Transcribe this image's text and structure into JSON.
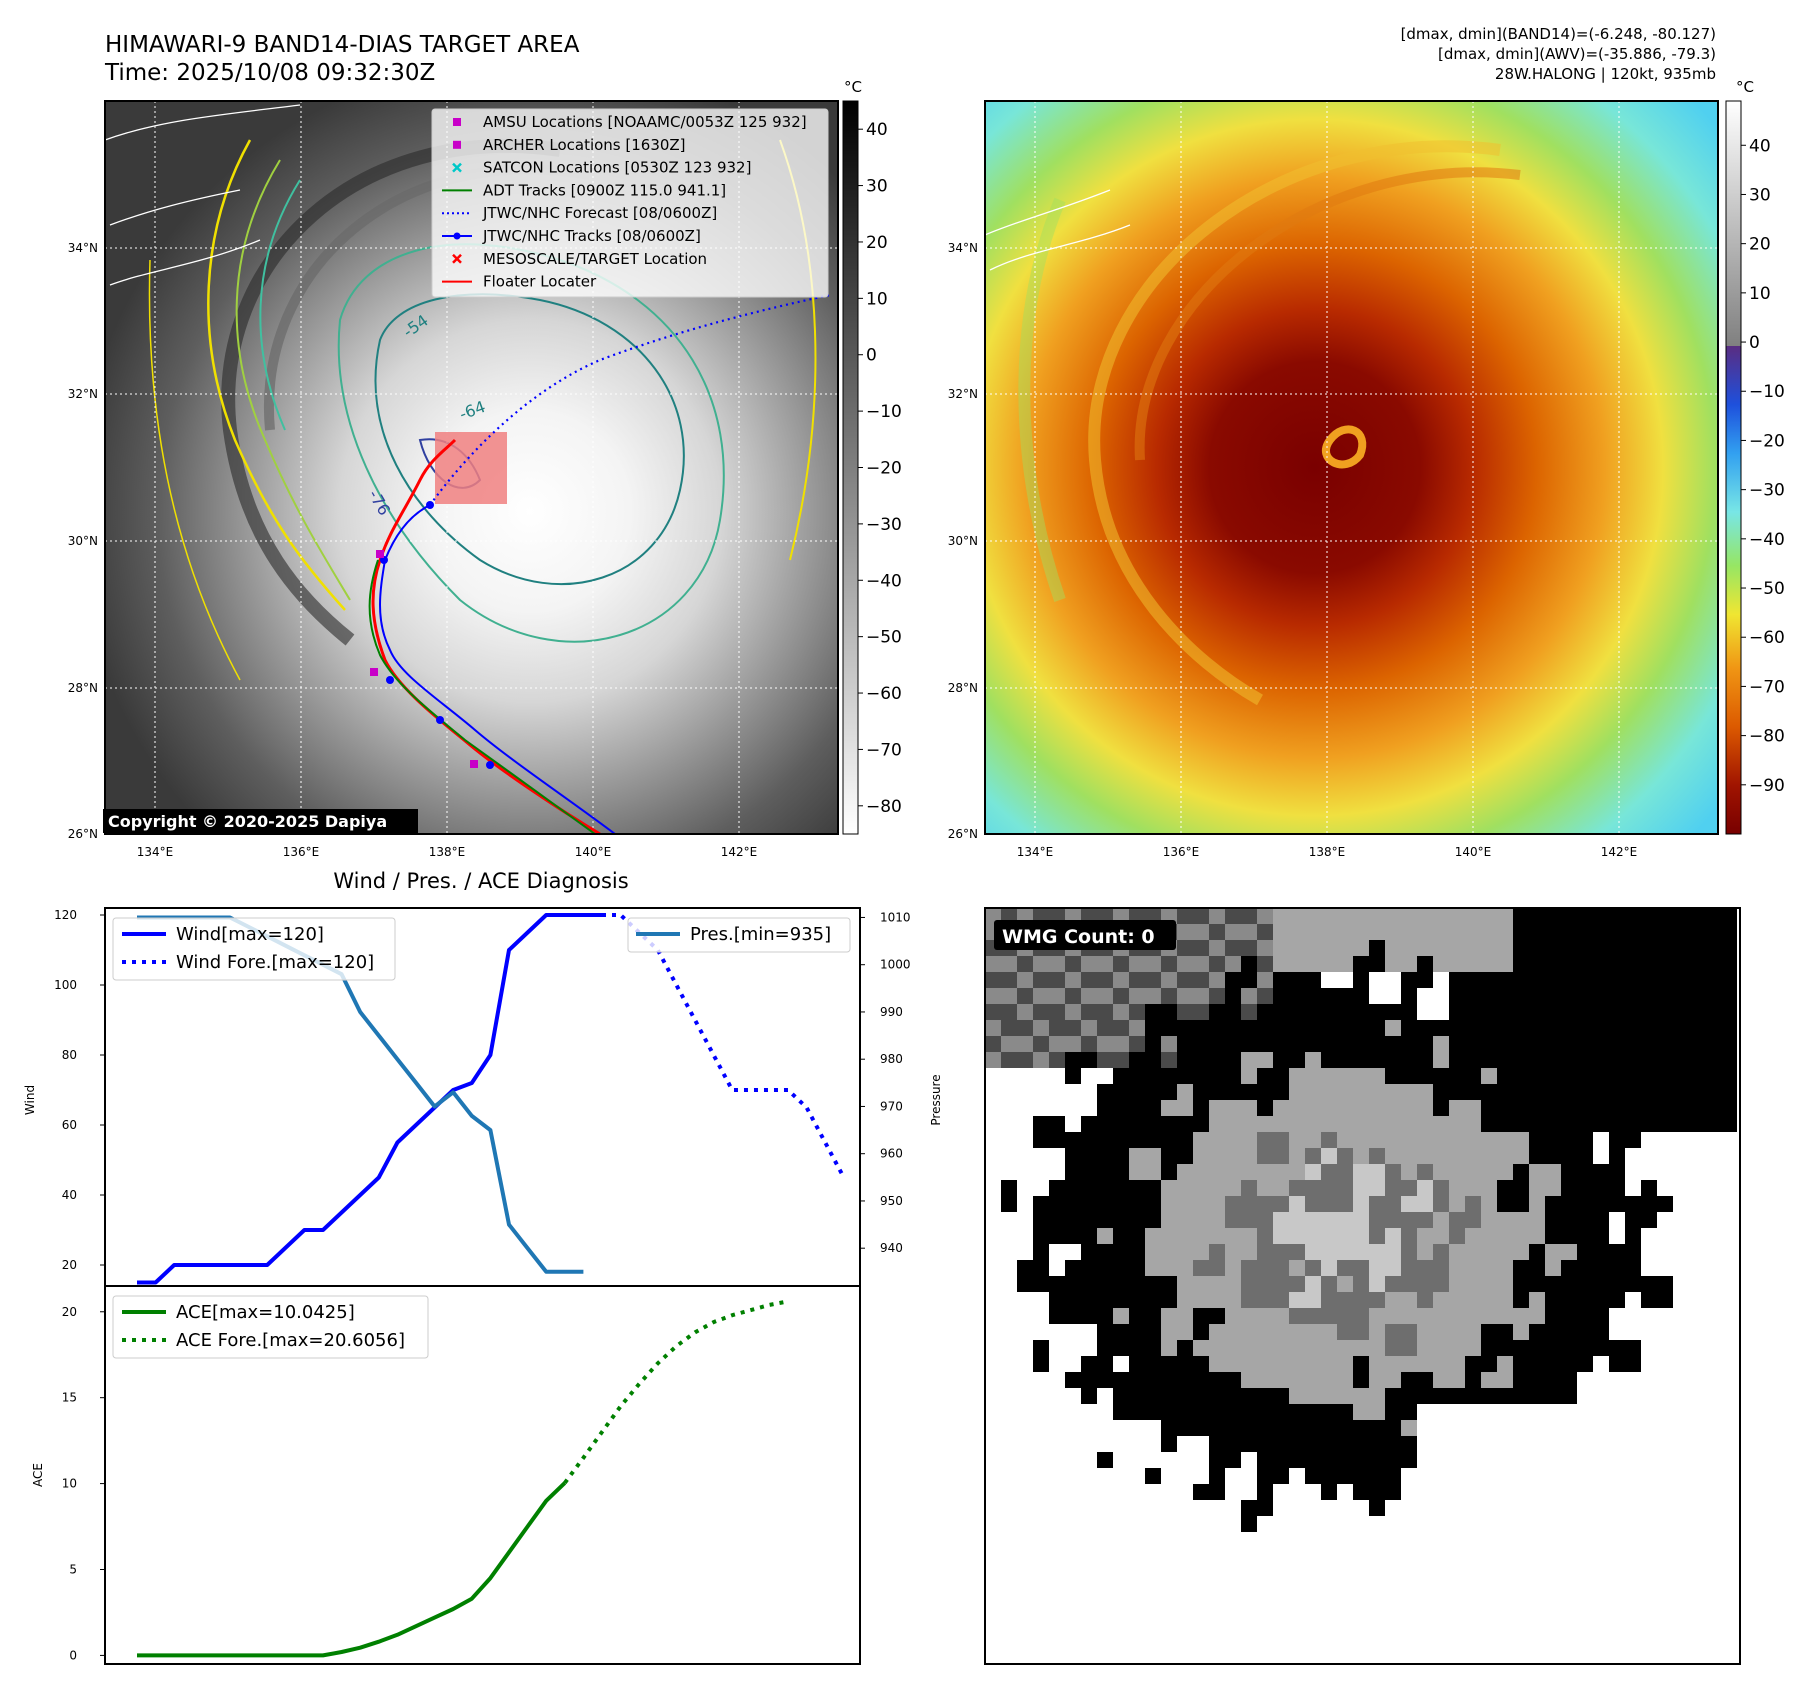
{
  "header": {
    "title": "HIMAWARI-9 BAND14-DIAS TARGET AREA",
    "time": "Time: 2025/10/08 09:32:30Z",
    "stats_band14": "[dmax, dmin](BAND14)=(-6.248, -80.127)",
    "stats_awv": "[dmax, dmin](AWV)=(-35.886, -79.3)",
    "storm": "28W.HALONG | 120kt, 935mb"
  },
  "copyright": "Copyright © 2020-2025 Dapiya",
  "wmg_label": "WMG Count: 0",
  "map": {
    "lon_ticks": [
      "134°E",
      "136°E",
      "138°E",
      "140°E",
      "142°E"
    ],
    "lat_ticks": [
      "34°N",
      "32°N",
      "30°N",
      "28°N",
      "26°N"
    ],
    "contour_labels": [
      "-54",
      "-64",
      "-76"
    ]
  },
  "colorbar_left": {
    "unit": "°C",
    "ticks": [
      "40",
      "30",
      "20",
      "10",
      "0",
      "−10",
      "−20",
      "−30",
      "−40",
      "−50",
      "−60",
      "−70",
      "−80"
    ]
  },
  "colorbar_right": {
    "unit": "°C",
    "ticks": [
      "40",
      "30",
      "20",
      "10",
      "0",
      "−10",
      "−20",
      "−30",
      "−40",
      "−50",
      "−60",
      "−70",
      "−80",
      "−90"
    ],
    "colors": [
      "#ffffff",
      "#e0e0e0",
      "#a0a0a0",
      "#5a2d82",
      "#1e64dc",
      "#32a0f0",
      "#78e6e6",
      "#96e664",
      "#f0e632",
      "#f09614",
      "#dc5a00",
      "#b41e00",
      "#780000"
    ]
  },
  "legend": {
    "items": [
      {
        "label": "AMSU Locations [NOAAMC/0053Z 125 932]",
        "symbol": "square",
        "color": "#c800c8"
      },
      {
        "label": "ARCHER Locations [1630Z]",
        "symbol": "square",
        "color": "#c800c8"
      },
      {
        "label": "SATCON Locations [0530Z 123 932]",
        "symbol": "x",
        "color": "#00c8c8"
      },
      {
        "label": "ADT Tracks [0900Z 115.0 941.1]",
        "symbol": "line",
        "color": "#008000"
      },
      {
        "label": "JTWC/NHC Forecast [08/0600Z]",
        "symbol": "dotted",
        "color": "#0000ff"
      },
      {
        "label": "JTWC/NHC Tracks [08/0600Z]",
        "symbol": "line-dot",
        "color": "#0000ff"
      },
      {
        "label": "MESOSCALE/TARGET Location",
        "symbol": "x",
        "color": "#ff0000"
      },
      {
        "label": "Floater Locater",
        "symbol": "line",
        "color": "#ff0000"
      }
    ]
  },
  "chart_data": [
    {
      "type": "line",
      "title": "Wind / Pres. / ACE Diagnosis",
      "ylabel": "Wind",
      "y2label": "Pressure",
      "ylim": [
        14,
        122
      ],
      "y2lim": [
        932,
        1012
      ],
      "yticks": [
        20,
        40,
        60,
        80,
        100,
        120
      ],
      "y2ticks": [
        940,
        950,
        960,
        970,
        980,
        990,
        1000,
        1010
      ],
      "series": [
        {
          "name": "Wind[max=120]",
          "axis": "left",
          "style": "solid",
          "color": "#0000ff",
          "values": [
            15,
            15,
            20,
            20,
            20,
            20,
            20,
            20,
            25,
            30,
            30,
            35,
            40,
            45,
            55,
            60,
            65,
            70,
            72,
            80,
            110,
            115,
            120,
            120,
            120,
            120
          ]
        },
        {
          "name": "Wind Fore.[max=120]",
          "axis": "left",
          "style": "dotted",
          "color": "#0000ff",
          "start_index": 25,
          "values": [
            120,
            120,
            115,
            110,
            100,
            90,
            80,
            70,
            70,
            70,
            70,
            65,
            55,
            45
          ]
        },
        {
          "name": "Pres.[min=935]",
          "axis": "right",
          "style": "solid",
          "color": "#1f77b4",
          "values": [
            1010,
            1010,
            1010,
            1010,
            1010,
            1010,
            1008,
            1006,
            1004,
            1002,
            1000,
            998,
            990,
            985,
            980,
            975,
            970,
            973,
            968,
            965,
            945,
            940,
            935,
            935,
            935
          ]
        }
      ]
    },
    {
      "type": "line",
      "ylabel": "ACE",
      "ylim": [
        -0.5,
        21.5
      ],
      "yticks": [
        0,
        5,
        10,
        15,
        20
      ],
      "series": [
        {
          "name": "ACE[max=10.0425]",
          "style": "solid",
          "color": "#008000",
          "values": [
            0,
            0,
            0,
            0,
            0,
            0,
            0,
            0,
            0,
            0,
            0,
            0.2,
            0.45,
            0.8,
            1.2,
            1.7,
            2.2,
            2.7,
            3.3,
            4.5,
            6.0,
            7.5,
            9.0,
            10.0425
          ]
        },
        {
          "name": "ACE Fore.[max=20.6056]",
          "style": "dotted",
          "color": "#008000",
          "start_index": 23,
          "values": [
            10.0425,
            11.5,
            13.0,
            14.5,
            15.8,
            17.0,
            18.0,
            18.8,
            19.4,
            19.8,
            20.1,
            20.4,
            20.6056
          ]
        }
      ]
    }
  ]
}
